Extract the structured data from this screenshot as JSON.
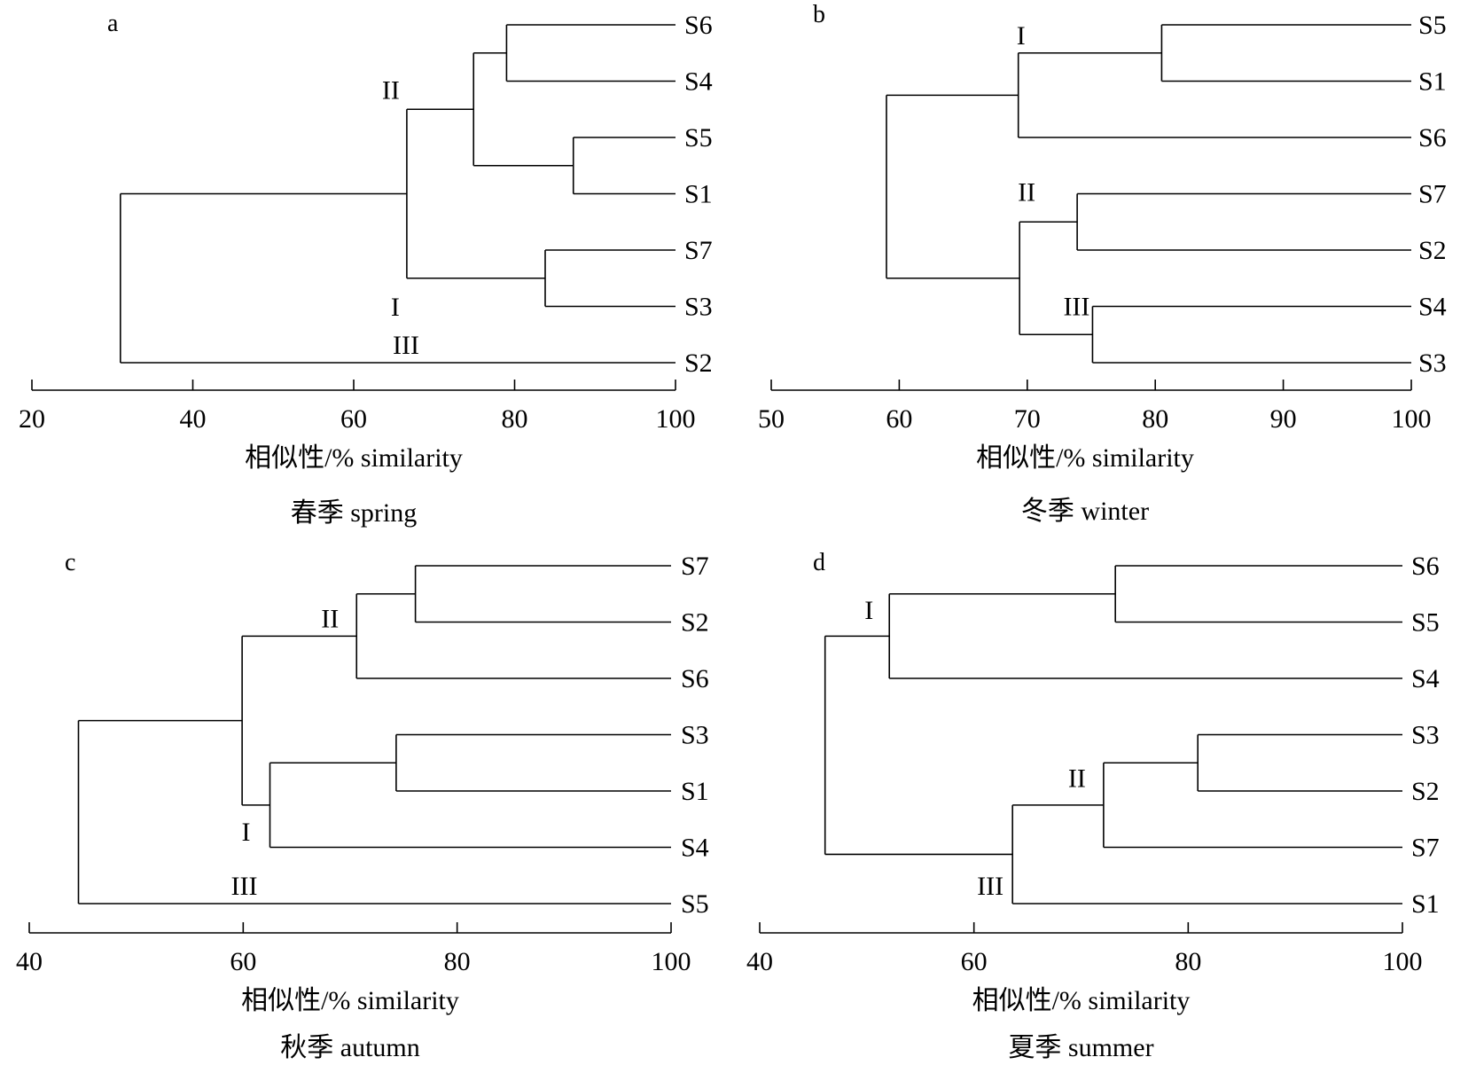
{
  "xlabel": "相似性/% similarity",
  "chart_data": [
    {
      "type": "dendrogram",
      "panel": "a",
      "caption": "春季 spring",
      "xlabel": "相似性/% similarity",
      "xlim": [
        20,
        100
      ],
      "xticks": [
        20,
        40,
        60,
        80,
        100
      ],
      "leaves": [
        "S6",
        "S4",
        "S5",
        "S1",
        "S7",
        "S3",
        "S2"
      ],
      "merges": [
        {
          "children": [
            "S6",
            "S4"
          ],
          "similarity": 79
        },
        {
          "children": [
            "S5",
            "S1"
          ],
          "similarity": 87.3
        },
        {
          "children": [
            "S7",
            "S3"
          ],
          "similarity": 83.8
        },
        {
          "children": [
            0,
            1
          ],
          "similarity": 74.9
        },
        {
          "children": [
            3,
            2
          ],
          "similarity": 66.6
        },
        {
          "children": [
            4,
            "S2"
          ],
          "similarity": 31
        }
      ],
      "groups": [
        {
          "label": "II",
          "merge": 4,
          "pos": "topleft"
        },
        {
          "label": "I",
          "merge": 4,
          "pos": "bottomleft"
        },
        {
          "label": "III",
          "leaf": "S2"
        }
      ]
    },
    {
      "type": "dendrogram",
      "panel": "b",
      "caption": "冬季 winter",
      "xlabel": "相似性/% similarity",
      "xlim": [
        50,
        100
      ],
      "xticks": [
        50,
        60,
        70,
        80,
        90,
        100
      ],
      "leaves": [
        "S5",
        "S1",
        "S6",
        "S7",
        "S2",
        "S4",
        "S3"
      ],
      "merges": [
        {
          "children": [
            "S5",
            "S1"
          ],
          "similarity": 80.5
        },
        {
          "children": [
            "S7",
            "S2"
          ],
          "similarity": 73.9
        },
        {
          "children": [
            "S4",
            "S3"
          ],
          "similarity": 75.1
        },
        {
          "children": [
            0,
            "S6"
          ],
          "similarity": 69.3
        },
        {
          "children": [
            1,
            2
          ],
          "similarity": 69.4
        },
        {
          "children": [
            3,
            4
          ],
          "similarity": 59
        }
      ],
      "groups": [
        {
          "label": "I",
          "merge": 3,
          "pos": "above"
        },
        {
          "label": "II",
          "merge": 1,
          "pos": "left"
        },
        {
          "label": "III",
          "merge": 2,
          "pos": "left"
        }
      ]
    },
    {
      "type": "dendrogram",
      "panel": "c",
      "caption": "秋季 autumn",
      "xlabel": "相似性/% similarity",
      "xlim": [
        40,
        100
      ],
      "xticks": [
        40,
        60,
        80,
        100
      ],
      "leaves": [
        "S7",
        "S2",
        "S6",
        "S3",
        "S1",
        "S4",
        "S5"
      ],
      "merges": [
        {
          "children": [
            "S7",
            "S2"
          ],
          "similarity": 76.1
        },
        {
          "children": [
            "S3",
            "S1"
          ],
          "similarity": 74.3
        },
        {
          "children": [
            0,
            "S6"
          ],
          "similarity": 70.6
        },
        {
          "children": [
            1,
            "S4"
          ],
          "similarity": 62.5
        },
        {
          "children": [
            2,
            3
          ],
          "similarity": 59.9
        },
        {
          "children": [
            4,
            "S5"
          ],
          "similarity": 44.6
        }
      ],
      "groups": [
        {
          "label": "II",
          "merge": 2,
          "pos": "left"
        },
        {
          "label": "I",
          "merge": 3,
          "pos": "left"
        },
        {
          "label": "III",
          "leaf": "S5"
        }
      ]
    },
    {
      "type": "dendrogram",
      "panel": "d",
      "caption": "夏季 summer",
      "xlabel": "相似性/% similarity",
      "xlim": [
        40,
        100
      ],
      "xticks": [
        40,
        60,
        80,
        100
      ],
      "leaves": [
        "S6",
        "S5",
        "S4",
        "S3",
        "S2",
        "S7",
        "S1"
      ],
      "merges": [
        {
          "children": [
            "S6",
            "S5"
          ],
          "similarity": 73.2
        },
        {
          "children": [
            "S3",
            "S2"
          ],
          "similarity": 80.9
        },
        {
          "children": [
            0,
            "S4"
          ],
          "similarity": 52.1
        },
        {
          "children": [
            1,
            "S7"
          ],
          "similarity": 72.1
        },
        {
          "children": [
            3,
            "S1"
          ],
          "similarity": 63.6
        },
        {
          "children": [
            2,
            4
          ],
          "similarity": 46.1
        }
      ],
      "groups": [
        {
          "label": "I",
          "merge": 2,
          "pos": "left"
        },
        {
          "label": "II",
          "merge": 3,
          "pos": "left"
        },
        {
          "label": "III",
          "merge": 4,
          "pos": "left"
        }
      ]
    }
  ]
}
